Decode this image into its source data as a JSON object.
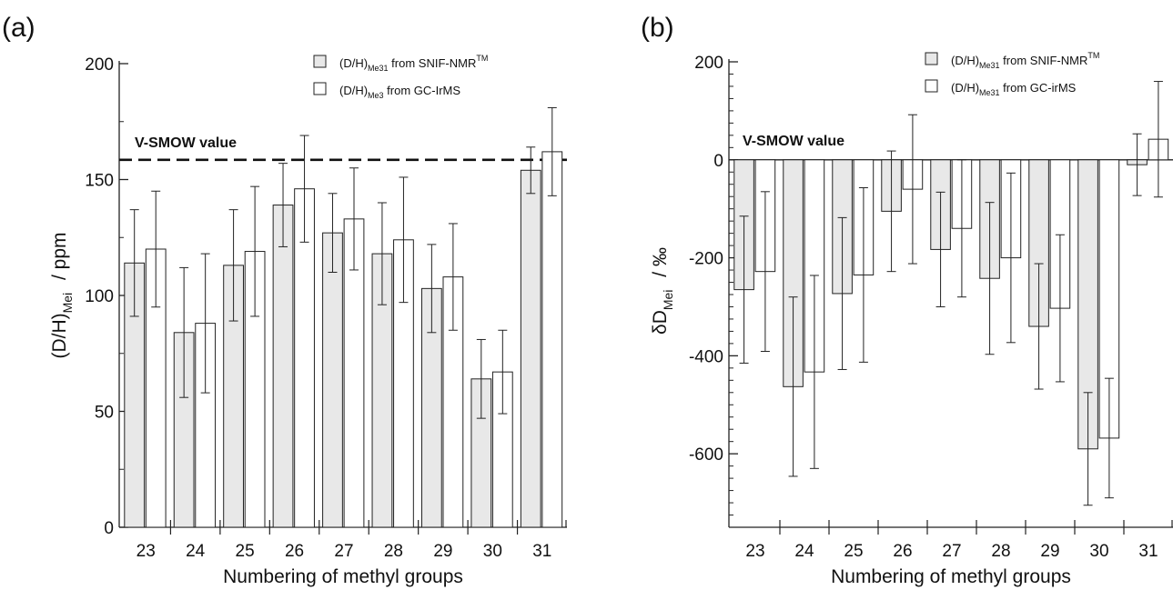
{
  "chart_data": [
    {
      "type": "bar",
      "panel_label": "(a)",
      "categories": [
        "23",
        "24",
        "25",
        "26",
        "27",
        "28",
        "29",
        "30",
        "31"
      ],
      "series": [
        {
          "name": "SNIF-NMR",
          "fill": "#e8e8e8",
          "values": [
            114,
            84,
            113,
            139,
            127,
            118,
            103,
            64,
            154
          ],
          "errors": [
            23,
            28,
            24,
            18,
            17,
            22,
            19,
            17,
            10
          ]
        },
        {
          "name": "GC-IrMS",
          "fill": "#ffffff",
          "values": [
            120,
            88,
            119,
            146,
            133,
            124,
            108,
            67,
            162
          ],
          "errors": [
            25,
            30,
            28,
            23,
            22,
            27,
            23,
            18,
            19
          ]
        }
      ],
      "ylim": [
        0,
        200
      ],
      "yticks": [
        "0",
        "50",
        "100",
        "150",
        "200"
      ],
      "ytick_values": [
        0,
        50,
        100,
        150,
        200
      ],
      "xlabel": "Numbering of methyl groups",
      "ylabel": {
        "main": "(D/H)",
        "sub": "Mei",
        "unit": "/ ppm"
      },
      "reference_line": {
        "label": "V-SMOW value",
        "value": 158.5
      },
      "legend": [
        {
          "main": "(D/H)",
          "sub": "Me31",
          "text": "from SNIF-NMR",
          "sup": "TM"
        },
        {
          "main": "(D/H)",
          "sub": "Me3",
          "text": "from  GC-IrMS",
          "sup": ""
        }
      ],
      "legend_position": "top-right"
    },
    {
      "type": "bar",
      "panel_label": "(b)",
      "categories": [
        "23",
        "24",
        "25",
        "26",
        "27",
        "28",
        "29",
        "30",
        "31"
      ],
      "series": [
        {
          "name": "SNIF-NMR",
          "fill": "#e8e8e8",
          "values": [
            -265,
            -463,
            -273,
            -105,
            -183,
            -242,
            -340,
            -590,
            -10
          ],
          "errors": [
            150,
            183,
            155,
            123,
            117,
            155,
            128,
            115,
            63
          ]
        },
        {
          "name": "GC-irMS",
          "fill": "#ffffff",
          "values": [
            -228,
            -433,
            -235,
            -60,
            -140,
            -200,
            -303,
            -568,
            42
          ],
          "errors": [
            163,
            197,
            178,
            152,
            140,
            173,
            150,
            122,
            118
          ]
        }
      ],
      "ylim": [
        -750,
        200
      ],
      "yticks": [
        "200",
        "0",
        "-200",
        "-400",
        "-600"
      ],
      "ytick_values": [
        200,
        0,
        -200,
        -400,
        -600
      ],
      "xlabel": "Numbering of methyl groups",
      "ylabel": {
        "main": "δD",
        "sub": "Mei",
        "unit": "/ ‰"
      },
      "reference_line": {
        "label": "V-SMOW value",
        "value": 0
      },
      "legend": [
        {
          "main": "(D/H)",
          "sub": "Me31",
          "text": "from SNIF-NMR",
          "sup": "TM"
        },
        {
          "main": "(D/H)",
          "sub": "Me31",
          "text": "from GC-irMS",
          "sup": ""
        }
      ],
      "legend_position": "top-right"
    }
  ]
}
